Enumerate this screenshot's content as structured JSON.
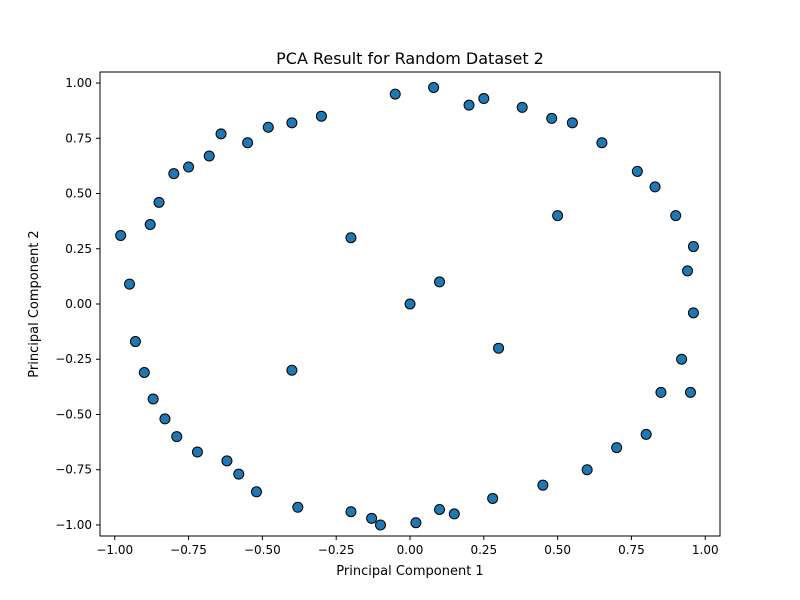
{
  "chart_data": {
    "type": "scatter",
    "title": "PCA Result for Random Dataset 2",
    "xlabel": "Principal Component 1",
    "ylabel": "Principal Component 2",
    "xlim": [
      -1.05,
      1.05
    ],
    "ylim": [
      -1.05,
      1.05
    ],
    "xticks": [
      -1.0,
      -0.75,
      -0.5,
      -0.25,
      0.0,
      0.25,
      0.5,
      0.75,
      1.0
    ],
    "xtick_labels": [
      "−1.00",
      "−0.75",
      "−0.50",
      "−0.25",
      "0.00",
      "0.25",
      "0.50",
      "0.75",
      "1.00"
    ],
    "yticks": [
      -1.0,
      -0.75,
      -0.5,
      -0.25,
      0.0,
      0.25,
      0.5,
      0.75,
      1.0
    ],
    "ytick_labels": [
      "−1.00",
      "−0.75",
      "−0.50",
      "−0.25",
      "0.00",
      "0.25",
      "0.50",
      "0.75",
      "1.00"
    ],
    "grid": false,
    "legend": "none",
    "marker_color": "#1f77b4",
    "marker_edge_color": "#000000",
    "series": [
      {
        "points": [
          [
            -0.98,
            0.31
          ],
          [
            -0.95,
            0.09
          ],
          [
            -0.93,
            -0.17
          ],
          [
            -0.9,
            -0.31
          ],
          [
            -0.88,
            0.36
          ],
          [
            -0.87,
            -0.43
          ],
          [
            -0.85,
            0.46
          ],
          [
            -0.83,
            -0.52
          ],
          [
            -0.8,
            0.59
          ],
          [
            -0.79,
            -0.6
          ],
          [
            -0.75,
            0.62
          ],
          [
            -0.72,
            -0.67
          ],
          [
            -0.68,
            0.67
          ],
          [
            -0.64,
            0.77
          ],
          [
            -0.62,
            -0.71
          ],
          [
            -0.58,
            -0.77
          ],
          [
            -0.55,
            0.73
          ],
          [
            -0.52,
            -0.85
          ],
          [
            -0.48,
            0.8
          ],
          [
            -0.4,
            0.82
          ],
          [
            -0.38,
            -0.92
          ],
          [
            -0.3,
            0.85
          ],
          [
            -0.2,
            -0.94
          ],
          [
            -0.13,
            -0.97
          ],
          [
            -0.1,
            -1.0
          ],
          [
            -0.05,
            0.95
          ],
          [
            0.02,
            -0.99
          ],
          [
            0.08,
            0.98
          ],
          [
            0.1,
            -0.93
          ],
          [
            0.15,
            -0.95
          ],
          [
            0.2,
            0.9
          ],
          [
            0.25,
            0.93
          ],
          [
            0.28,
            -0.88
          ],
          [
            0.38,
            0.89
          ],
          [
            0.45,
            -0.82
          ],
          [
            0.48,
            0.84
          ],
          [
            0.55,
            0.82
          ],
          [
            0.6,
            -0.75
          ],
          [
            0.65,
            0.73
          ],
          [
            0.7,
            -0.65
          ],
          [
            0.77,
            0.6
          ],
          [
            0.8,
            -0.59
          ],
          [
            0.83,
            0.53
          ],
          [
            0.85,
            -0.4
          ],
          [
            0.9,
            0.4
          ],
          [
            0.92,
            -0.25
          ],
          [
            0.94,
            0.15
          ],
          [
            0.95,
            -0.4
          ],
          [
            0.96,
            0.26
          ],
          [
            0.96,
            -0.04
          ],
          [
            0.0,
            0.0
          ],
          [
            0.1,
            0.1
          ],
          [
            -0.2,
            0.3
          ],
          [
            0.3,
            -0.2
          ],
          [
            -0.4,
            -0.3
          ],
          [
            0.5,
            0.4
          ]
        ]
      }
    ]
  }
}
